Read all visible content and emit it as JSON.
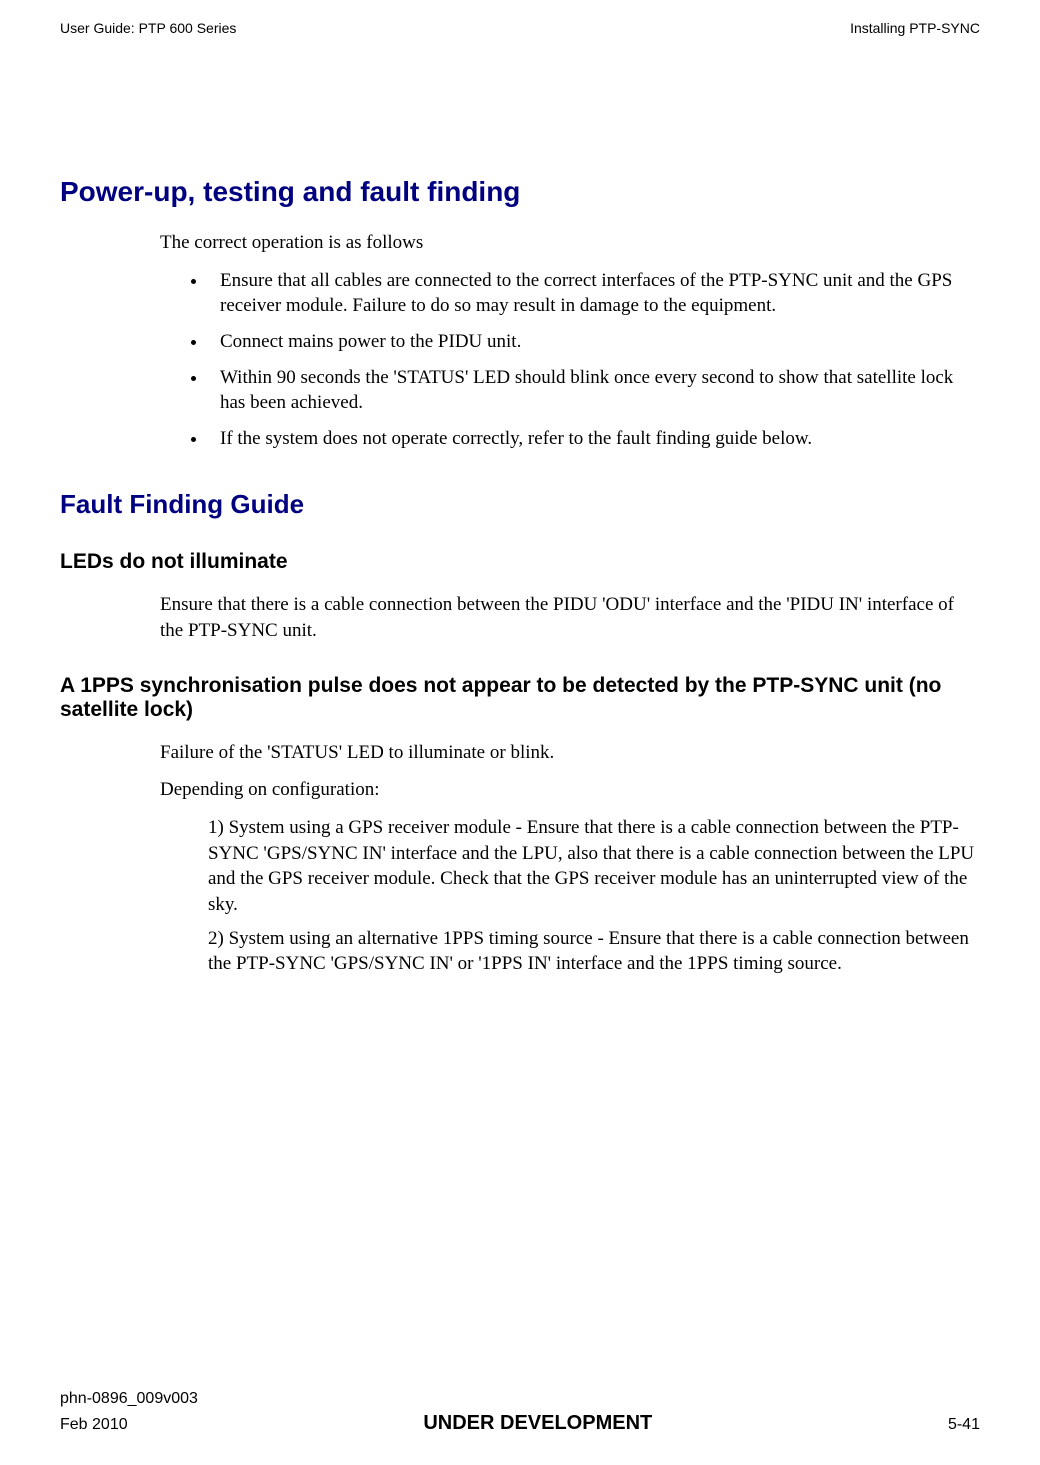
{
  "header": {
    "left": "User Guide: PTP 600 Series",
    "right": "Installing PTP-SYNC"
  },
  "colors": {
    "heading": "#000080",
    "body": "#000000",
    "background": "#ffffff"
  },
  "section1": {
    "title": "Power-up, testing and fault finding",
    "intro": "The correct operation is as follows",
    "bullets": [
      "Ensure that all cables are connected to the correct interfaces of the PTP-SYNC unit and the GPS receiver module. Failure to do so may result in damage to the equipment.",
      "Connect mains power to the PIDU unit.",
      "Within 90 seconds the 'STATUS' LED should blink once every second to show that satellite lock has been achieved.",
      "If the system does not operate correctly, refer to the fault finding guide below."
    ]
  },
  "section2": {
    "title": "Fault Finding Guide",
    "sub1": {
      "title": "LEDs do not illuminate",
      "text": "Ensure that there is a cable connection between the PIDU 'ODU' interface and the 'PIDU IN' interface of the PTP-SYNC unit."
    },
    "sub2": {
      "title": "A 1PPS synchronisation pulse does not appear to be detected by the PTP-SYNC unit (no satellite lock)",
      "p1": "Failure of the 'STATUS' LED to illuminate or blink.",
      "p2": "Depending on configuration:",
      "item1": "1) System using a GPS receiver module - Ensure that there is a cable connection between the PTP-SYNC 'GPS/SYNC IN' interface and the LPU, also that there is a cable connection between the LPU and the GPS receiver module. Check that the GPS receiver module has an uninterrupted view of the sky.",
      "item2": "2) System using an alternative 1PPS timing source - Ensure that there is a cable connection between the PTP-SYNC 'GPS/SYNC IN' or '1PPS IN' interface and the 1PPS timing source."
    }
  },
  "footer": {
    "docnum": "phn-0896_009v003",
    "date": "Feb 2010",
    "center": "UNDER DEVELOPMENT",
    "pagenum": "5-41"
  }
}
